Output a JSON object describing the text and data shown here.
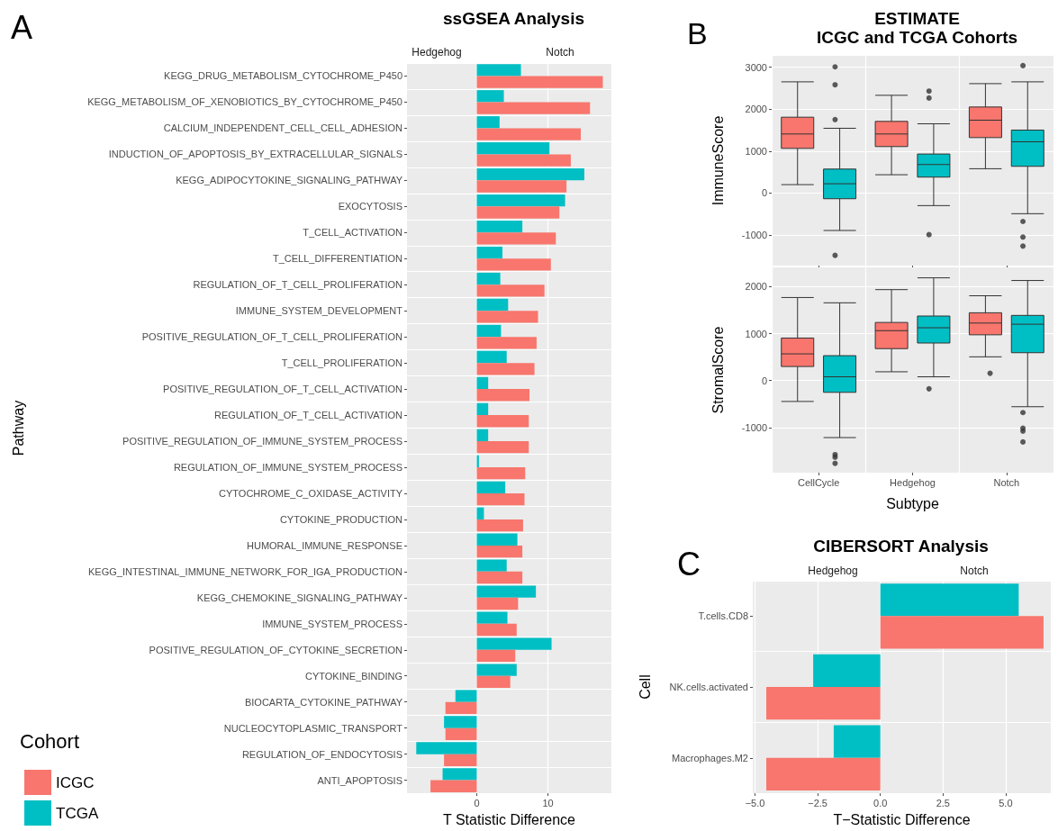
{
  "chart_data": [
    {
      "type": "bar",
      "orientation": "horizontal",
      "title": "ssGSEA Analysis",
      "xlabel": "T Statistic Difference",
      "ylabel": "Pathway",
      "legend_title": "Cohort",
      "legend": "bottom left",
      "grid": true,
      "annotations": [
        "A",
        "Hedgehog",
        "Notch"
      ],
      "categories": [
        "KEGG_DRUG_METABOLISM_CYTOCHROME_P450",
        "KEGG_METABOLISM_OF_XENOBIOTICS_BY_CYTOCHROME_P450",
        "CALCIUM_INDEPENDENT_CELL_CELL_ADHESION",
        "INDUCTION_OF_APOPTOSIS_BY_EXTRACELLULAR_SIGNALS",
        "KEGG_ADIPOCYTOKINE_SIGNALING_PATHWAY",
        "EXOCYTOSIS",
        "T_CELL_ACTIVATION",
        "T_CELL_DIFFERENTIATION",
        "REGULATION_OF_T_CELL_PROLIFERATION",
        "IMMUNE_SYSTEM_DEVELOPMENT",
        "POSITIVE_REGULATION_OF_T_CELL_PROLIFERATION",
        "T_CELL_PROLIFERATION",
        "POSITIVE_REGULATION_OF_T_CELL_ACTIVATION",
        "REGULATION_OF_T_CELL_ACTIVATION",
        "POSITIVE_REGULATION_OF_IMMUNE_SYSTEM_PROCESS",
        "REGULATION_OF_IMMUNE_SYSTEM_PROCESS",
        "CYTOCHROME_C_OXIDASE_ACTIVITY",
        "CYTOKINE_PRODUCTION",
        "HUMORAL_IMMUNE_RESPONSE",
        "KEGG_INTESTINAL_IMMUNE_NETWORK_FOR_IGA_PRODUCTION",
        "KEGG_CHEMOKINE_SIGNALING_PATHWAY",
        "IMMUNE_SYSTEM_PROCESS",
        "POSITIVE_REGULATION_OF_CYTOKINE_SECRETION",
        "CYTOKINE_BINDING",
        "BIOCARTA_CYTOKINE_PATHWAY",
        "NUCLEOCYTOPLASMIC_TRANSPORT",
        "REGULATION_OF_ENDOCYTOSIS",
        "ANTI_APOPTOSIS"
      ],
      "xlim": [
        -9.8,
        18.9
      ],
      "xticks": [
        0,
        10
      ],
      "series": [
        {
          "name": "ICGC",
          "color": "#f8766d",
          "values": [
            17.7,
            15.9,
            14.6,
            13.2,
            12.6,
            11.6,
            11.1,
            10.4,
            9.5,
            8.6,
            8.4,
            8.1,
            7.4,
            7.3,
            7.3,
            6.8,
            6.7,
            6.5,
            6.4,
            6.4,
            5.8,
            5.6,
            5.4,
            4.7,
            -4.4,
            -4.4,
            -4.6,
            -6.5
          ]
        },
        {
          "name": "TCGA",
          "color": "#00bfc4",
          "values": [
            6.2,
            3.8,
            3.2,
            10.2,
            15.1,
            12.4,
            6.4,
            3.6,
            3.3,
            4.4,
            3.4,
            4.2,
            1.6,
            1.6,
            1.6,
            0.3,
            4.0,
            1.0,
            5.7,
            4.2,
            8.3,
            4.3,
            10.5,
            5.6,
            -3.0,
            -4.6,
            -8.5,
            -4.8
          ]
        }
      ]
    },
    {
      "type": "box",
      "title": "ESTIMATE",
      "subtitle": "ICGC and TCGA Cohorts",
      "ylabel": "ImmuneScore",
      "grid": true,
      "tick_labels": "y",
      "annotations": [
        "B"
      ],
      "ylim": [
        -1730,
        3270
      ],
      "yticks": [
        -1000,
        0,
        1000,
        2000,
        3000
      ],
      "series": [
        {
          "color": "#f8766d",
          "boxes": [
            {
              "low": 200,
              "q1": 1064,
              "median": 1407,
              "q3": 1807,
              "high": 2650
            },
            {
              "low": 436,
              "q1": 1107,
              "median": 1407,
              "q3": 1707,
              "high": 2329
            },
            {
              "low": 579,
              "q1": 1321,
              "median": 1736,
              "q3": 2050,
              "high": 2607
            }
          ]
        },
        {
          "color": "#00bfc4",
          "boxes": [
            {
              "low": -893,
              "q1": -136,
              "median": 221,
              "q3": 571,
              "high": 1543,
              "outliers": [
                3007,
                2579,
                1750,
                -1486
              ]
            },
            {
              "low": -300,
              "q1": 379,
              "median": 679,
              "q3": 929,
              "high": 1650,
              "outliers": [
                2429,
                2264,
                -993
              ]
            },
            {
              "low": -493,
              "q1": 636,
              "median": 1221,
              "q3": 1500,
              "high": 2650,
              "outliers": [
                3036,
                -679,
                -1050,
                -1264
              ]
            }
          ]
        }
      ]
    },
    {
      "type": "box",
      "xlabel": "Subtype",
      "ylabel": "StromalScore",
      "grid": true,
      "categories": [
        "CellCycle",
        "Hedgehog",
        "Notch"
      ],
      "ylim": [
        -1960,
        2410
      ],
      "yticks": [
        -1000,
        0,
        1000,
        2000
      ],
      "series": [
        {
          "color": "#f8766d",
          "boxes": [
            {
              "low": -444,
              "q1": 300,
              "median": 569,
              "q3": 906,
              "high": 1769
            },
            {
              "low": 188,
              "q1": 681,
              "median": 1063,
              "q3": 1238,
              "high": 1937
            },
            {
              "low": 506,
              "q1": 975,
              "median": 1225,
              "q3": 1444,
              "high": 1806,
              "outliers": [
                156
              ]
            }
          ]
        },
        {
          "color": "#00bfc4",
          "boxes": [
            {
              "low": -1213,
              "q1": -250,
              "median": 81,
              "q3": 531,
              "high": 1656,
              "outliers": [
                -1575,
                -1631,
                -1763
              ]
            },
            {
              "low": 81,
              "q1": 800,
              "median": 1125,
              "q3": 1375,
              "high": 2188,
              "outliers": [
                -175
              ]
            },
            {
              "low": -556,
              "q1": 594,
              "median": 1200,
              "q3": 1388,
              "high": 2131,
              "outliers": [
                -681,
                -1013,
                -1075,
                -1306
              ]
            }
          ]
        }
      ]
    },
    {
      "type": "bar",
      "orientation": "horizontal",
      "title": "CIBERSORT Analysis",
      "xlabel": "T−Statistic Difference",
      "ylabel": "Cell",
      "grid": true,
      "annotations": [
        "C",
        "Hedgehog",
        "Notch"
      ],
      "categories": [
        "T.cells.CD8",
        "NK.cells.activated",
        "Macrophages.M2"
      ],
      "xlim": [
        -5.09,
        6.8
      ],
      "xticks": [
        {
          "value": -5,
          "label": "−5.0"
        },
        {
          "value": -2.5,
          "label": "−2.5"
        },
        {
          "value": 0,
          "label": "0.0"
        },
        {
          "value": 2.5,
          "label": "2.5"
        },
        {
          "value": 5,
          "label": "5.0"
        }
      ],
      "series": [
        {
          "color": "#f8766d",
          "values": [
            6.51,
            -4.55,
            -4.55
          ]
        },
        {
          "color": "#00bfc4",
          "values": [
            5.52,
            -2.68,
            -1.86
          ]
        }
      ]
    }
  ]
}
